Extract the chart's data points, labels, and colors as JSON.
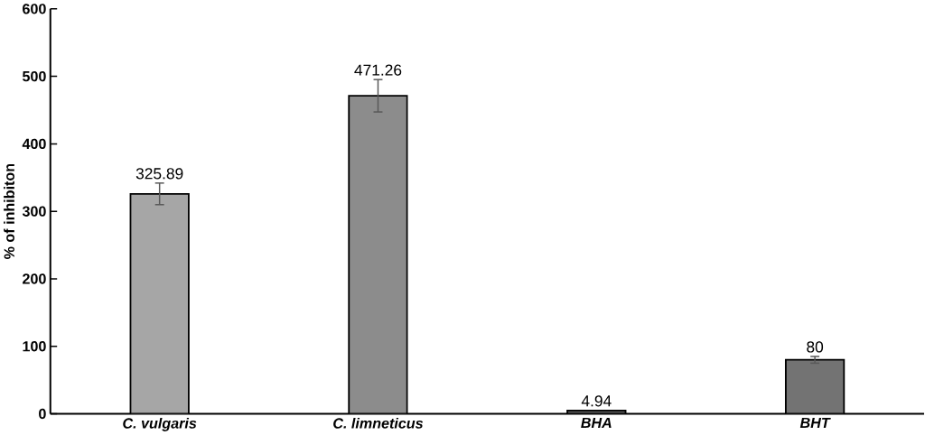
{
  "chart_data": {
    "type": "bar",
    "ylabel": "% of inhibiton",
    "categories": [
      "C. vulgaris",
      "C. limneticus",
      "BHA",
      "BHT"
    ],
    "values": [
      325.89,
      471.26,
      4.94,
      80
    ],
    "errors": [
      16,
      24,
      null,
      5
    ],
    "value_labels": [
      "325.89",
      "471.26",
      "4.94",
      "80"
    ],
    "color": "#000000",
    "colors": [
      "#a6a6a6",
      "#8c8c8c",
      "#595959",
      "#737373"
    ],
    "ylim": [
      0,
      600
    ],
    "yticks": [
      0,
      100,
      200,
      300,
      400,
      500,
      600
    ],
    "grid": false
  }
}
